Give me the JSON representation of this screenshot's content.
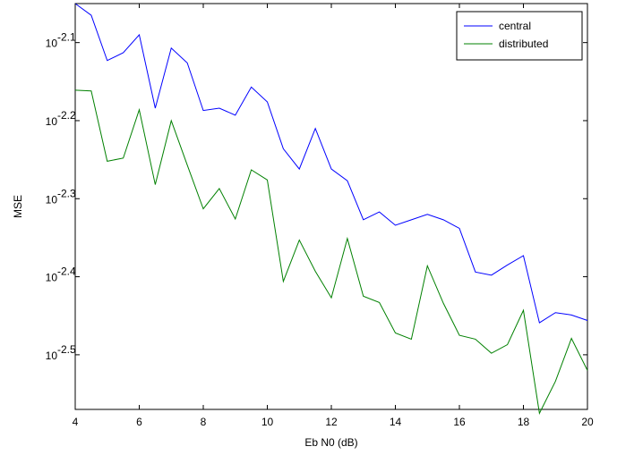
{
  "chart_data": {
    "type": "line",
    "title": "",
    "xlabel": "Eb N0 (dB)",
    "ylabel": "MSE",
    "yscale": "log",
    "xlim": [
      4,
      20
    ],
    "ylim_log10": [
      -2.57,
      -2.05
    ],
    "grid": false,
    "legend_position": "top-right",
    "x_ticks": [
      4,
      6,
      8,
      10,
      12,
      14,
      16,
      18,
      20
    ],
    "x_tick_labels": [
      "4",
      "6",
      "8",
      "10",
      "12",
      "14",
      "16",
      "18",
      "20"
    ],
    "y_ticks_log10": [
      -2.1,
      -2.2,
      -2.3,
      -2.4,
      -2.5
    ],
    "y_tick_base": "10",
    "y_tick_exponents": [
      "-2.1",
      "-2.2",
      "-2.3",
      "-2.4",
      "-2.5"
    ],
    "x": [
      4,
      4.5,
      5,
      5.5,
      6,
      6.5,
      7,
      7.5,
      8,
      8.5,
      9,
      9.5,
      10,
      10.5,
      11,
      11.5,
      12,
      12.5,
      13,
      13.5,
      14,
      14.5,
      15,
      15.5,
      16,
      16.5,
      17,
      17.5,
      18,
      18.5,
      19,
      19.5,
      20
    ],
    "series": [
      {
        "name": "central",
        "color": "#0000ff",
        "log10_values": [
          -2.05,
          -2.065,
          -2.123,
          -2.113,
          -2.09,
          -2.184,
          -2.107,
          -2.126,
          -2.187,
          -2.184,
          -2.193,
          -2.157,
          -2.176,
          -2.236,
          -2.262,
          -2.21,
          -2.262,
          -2.277,
          -2.327,
          -2.317,
          -2.334,
          -2.327,
          -2.32,
          -2.327,
          -2.338,
          -2.394,
          -2.398,
          -2.385,
          -2.373,
          -2.459,
          -2.446,
          -2.449,
          -2.456
        ]
      },
      {
        "name": "distributed",
        "color": "#008000",
        "log10_values": [
          -2.161,
          -2.162,
          -2.252,
          -2.248,
          -2.186,
          -2.282,
          -2.2,
          -2.257,
          -2.313,
          -2.287,
          -2.326,
          -2.263,
          -2.276,
          -2.406,
          -2.353,
          -2.393,
          -2.427,
          -2.351,
          -2.425,
          -2.433,
          -2.472,
          -2.48,
          -2.386,
          -2.434,
          -2.475,
          -2.48,
          -2.498,
          -2.487,
          -2.443,
          -2.575,
          -2.534,
          -2.479,
          -2.52
        ]
      }
    ]
  }
}
